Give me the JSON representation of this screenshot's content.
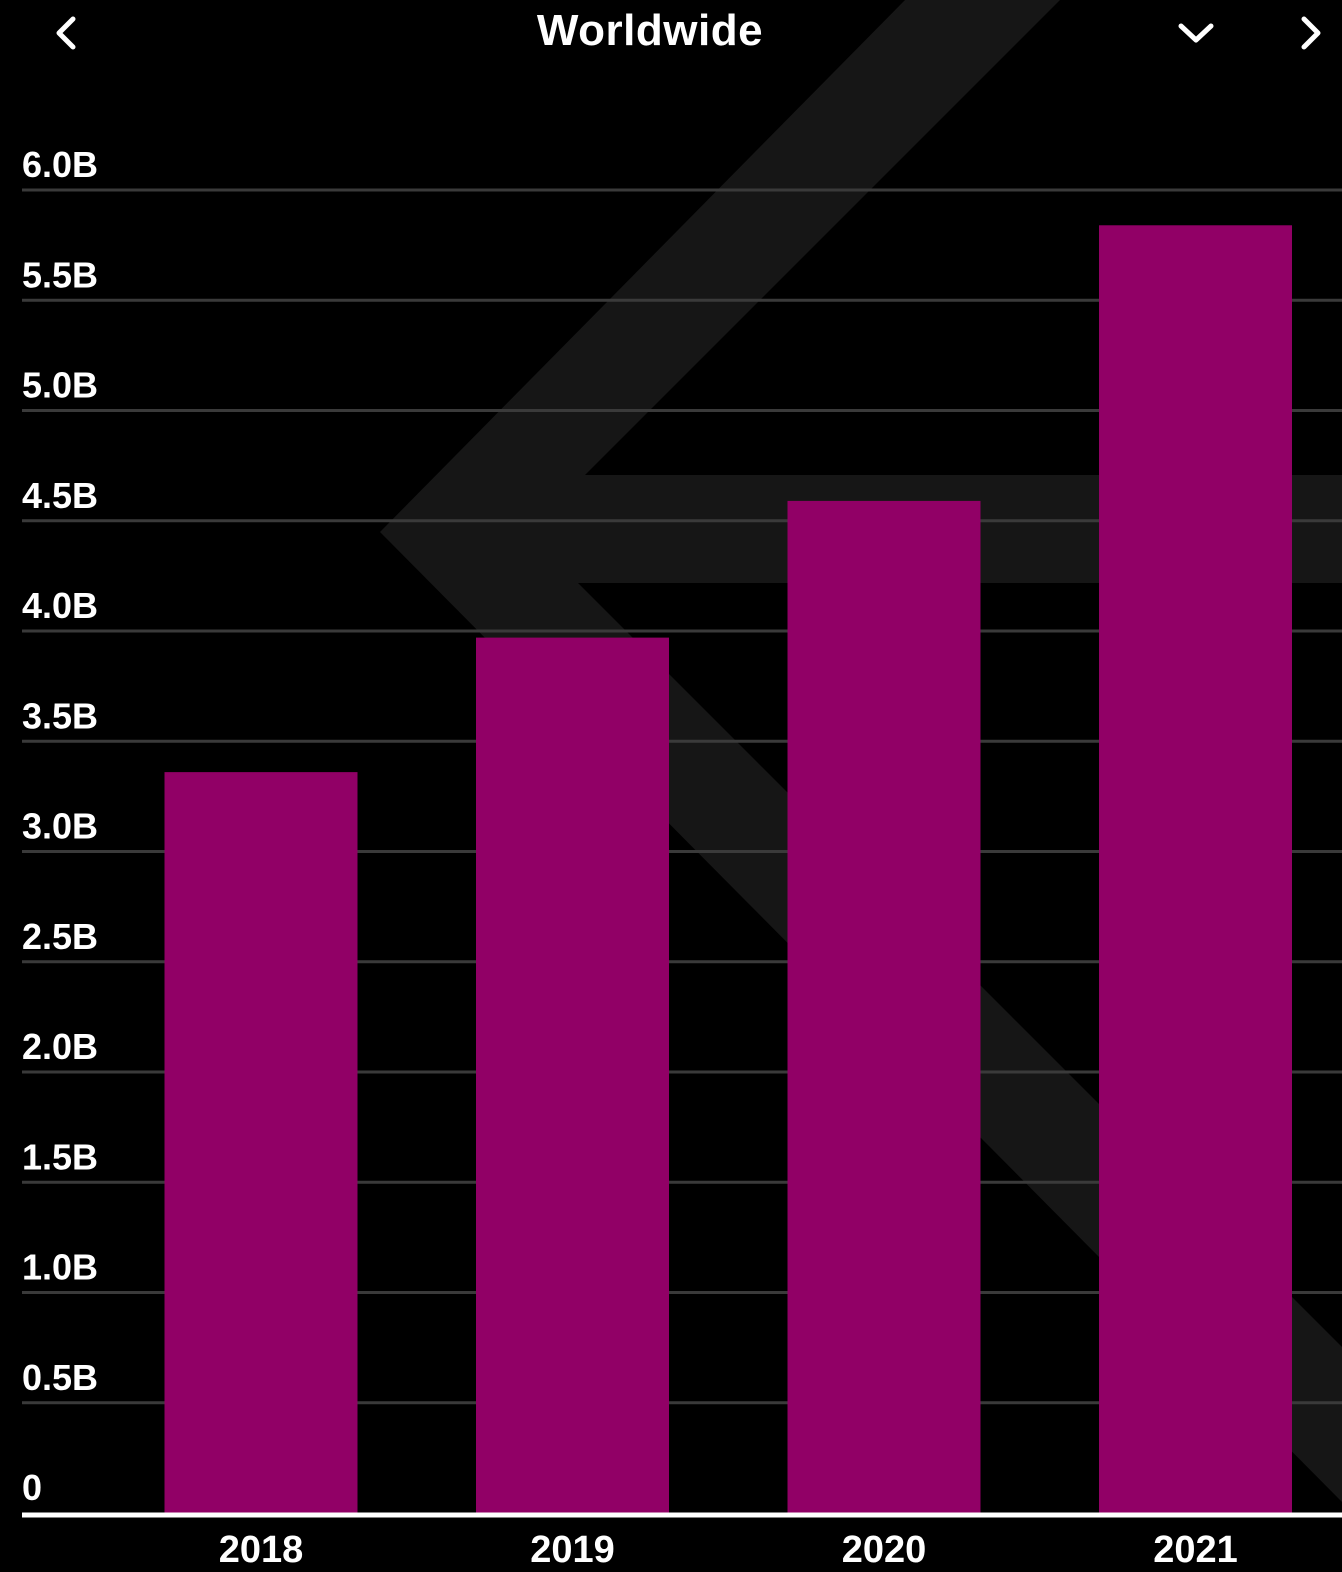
{
  "header": {
    "title": "Worldwide",
    "back_icon": "chevron-left-icon",
    "dropdown_icon": "chevron-down-icon",
    "forward_icon": "chevron-right-icon"
  },
  "colors": {
    "background": "#000000",
    "bar": "#910066",
    "grid": "#3a3a3a",
    "axis": "#ffffff",
    "watermark": "#161616"
  },
  "chart_data": {
    "type": "bar",
    "categories": [
      "2018",
      "2019",
      "2020",
      "2021"
    ],
    "values": [
      3.36,
      3.97,
      4.59,
      5.84
    ],
    "unit_suffix": "B",
    "ylim": [
      0,
      6.0
    ],
    "yticks": [
      0,
      0.5,
      1.0,
      1.5,
      2.0,
      2.5,
      3.0,
      3.5,
      4.0,
      4.5,
      5.0,
      5.5,
      6.0
    ],
    "ytick_labels": [
      "0",
      "0.5B",
      "1.0B",
      "1.5B",
      "2.0B",
      "2.5B",
      "3.0B",
      "3.5B",
      "4.0B",
      "4.5B",
      "5.0B",
      "5.5B",
      "6.0B"
    ],
    "grid": true,
    "title": "",
    "xlabel": "",
    "ylabel": ""
  }
}
